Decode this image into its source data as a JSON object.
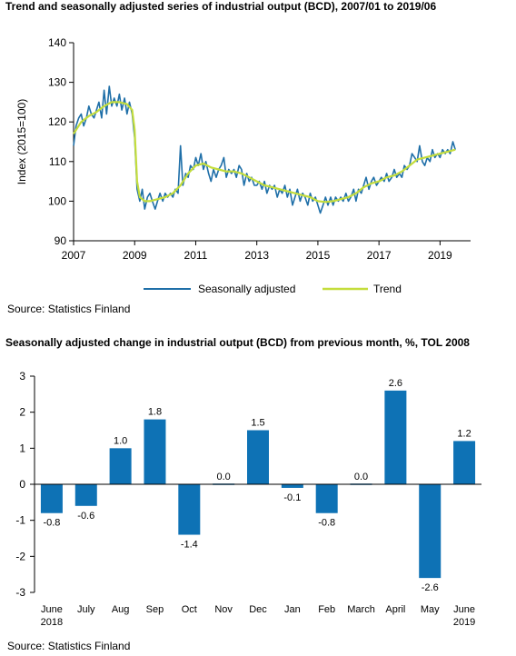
{
  "source_label": "Source: Statistics Finland",
  "chart_data": [
    {
      "type": "line",
      "title": "Trend and seasonally adjusted series of industrial output (BCD), 2007/01 to 2019/06",
      "xlabel": "",
      "ylabel": "Index (2015=100)",
      "ylim": [
        90,
        140
      ],
      "yticks": [
        90,
        100,
        110,
        120,
        130,
        140
      ],
      "xlim": [
        2007,
        2020
      ],
      "xticks": [
        2007,
        2009,
        2011,
        2013,
        2015,
        2017,
        2019
      ],
      "grid": false,
      "legend_position": "bottom",
      "colors": {
        "seasonally_adjusted": "#1f6fa8",
        "trend": "#c4dd3c"
      },
      "series": [
        {
          "name": "Seasonally adjusted",
          "points": [
            [
              2007.0,
              114
            ],
            [
              2007.08,
              119
            ],
            [
              2007.17,
              121
            ],
            [
              2007.25,
              122
            ],
            [
              2007.33,
              119
            ],
            [
              2007.42,
              121
            ],
            [
              2007.5,
              124
            ],
            [
              2007.58,
              122
            ],
            [
              2007.67,
              121
            ],
            [
              2007.75,
              123
            ],
            [
              2007.83,
              125
            ],
            [
              2007.92,
              121
            ],
            [
              2008.0,
              128
            ],
            [
              2008.08,
              122
            ],
            [
              2008.17,
              129
            ],
            [
              2008.25,
              124
            ],
            [
              2008.33,
              126
            ],
            [
              2008.42,
              124
            ],
            [
              2008.5,
              127
            ],
            [
              2008.58,
              123
            ],
            [
              2008.67,
              126
            ],
            [
              2008.75,
              122
            ],
            [
              2008.83,
              125
            ],
            [
              2008.92,
              122
            ],
            [
              2009.0,
              116
            ],
            [
              2009.08,
              103
            ],
            [
              2009.17,
              100
            ],
            [
              2009.25,
              103
            ],
            [
              2009.33,
              98
            ],
            [
              2009.42,
              101
            ],
            [
              2009.5,
              102
            ],
            [
              2009.58,
              100
            ],
            [
              2009.67,
              98
            ],
            [
              2009.75,
              100
            ],
            [
              2009.83,
              102
            ],
            [
              2009.92,
              100
            ],
            [
              2010.0,
              102
            ],
            [
              2010.08,
              101
            ],
            [
              2010.17,
              102
            ],
            [
              2010.25,
              101
            ],
            [
              2010.33,
              103
            ],
            [
              2010.42,
              102
            ],
            [
              2010.5,
              114
            ],
            [
              2010.58,
              104
            ],
            [
              2010.67,
              107
            ],
            [
              2010.75,
              106
            ],
            [
              2010.83,
              109
            ],
            [
              2010.92,
              108
            ],
            [
              2011.0,
              111
            ],
            [
              2011.08,
              109
            ],
            [
              2011.17,
              112
            ],
            [
              2011.25,
              108
            ],
            [
              2011.33,
              110
            ],
            [
              2011.42,
              107
            ],
            [
              2011.5,
              105
            ],
            [
              2011.58,
              108
            ],
            [
              2011.67,
              106
            ],
            [
              2011.75,
              108
            ],
            [
              2011.83,
              109
            ],
            [
              2011.92,
              111
            ],
            [
              2012.0,
              106
            ],
            [
              2012.08,
              108
            ],
            [
              2012.17,
              107
            ],
            [
              2012.25,
              108
            ],
            [
              2012.33,
              106
            ],
            [
              2012.42,
              109
            ],
            [
              2012.5,
              108
            ],
            [
              2012.58,
              104
            ],
            [
              2012.67,
              107
            ],
            [
              2012.75,
              105
            ],
            [
              2012.83,
              106
            ],
            [
              2012.92,
              104
            ],
            [
              2013.0,
              104
            ],
            [
              2013.08,
              105
            ],
            [
              2013.17,
              103
            ],
            [
              2013.25,
              105
            ],
            [
              2013.33,
              102
            ],
            [
              2013.42,
              104
            ],
            [
              2013.5,
              103
            ],
            [
              2013.58,
              104
            ],
            [
              2013.67,
              101
            ],
            [
              2013.75,
              103
            ],
            [
              2013.83,
              102
            ],
            [
              2013.92,
              104
            ],
            [
              2014.0,
              101
            ],
            [
              2014.08,
              103
            ],
            [
              2014.17,
              99
            ],
            [
              2014.25,
              101
            ],
            [
              2014.33,
              103
            ],
            [
              2014.42,
              100
            ],
            [
              2014.5,
              102
            ],
            [
              2014.58,
              101
            ],
            [
              2014.67,
              99
            ],
            [
              2014.75,
              102
            ],
            [
              2014.83,
              100
            ],
            [
              2014.92,
              101
            ],
            [
              2015.0,
              99
            ],
            [
              2015.08,
              97
            ],
            [
              2015.17,
              99
            ],
            [
              2015.25,
              101
            ],
            [
              2015.33,
              99
            ],
            [
              2015.42,
              101
            ],
            [
              2015.5,
              99
            ],
            [
              2015.58,
              101
            ],
            [
              2015.67,
              100
            ],
            [
              2015.75,
              101
            ],
            [
              2015.83,
              100
            ],
            [
              2015.92,
              102
            ],
            [
              2016.0,
              100
            ],
            [
              2016.08,
              101
            ],
            [
              2016.17,
              103
            ],
            [
              2016.25,
              100
            ],
            [
              2016.33,
              103
            ],
            [
              2016.42,
              102
            ],
            [
              2016.5,
              104
            ],
            [
              2016.58,
              106
            ],
            [
              2016.67,
              103
            ],
            [
              2016.75,
              105
            ],
            [
              2016.83,
              106
            ],
            [
              2016.92,
              104
            ],
            [
              2017.0,
              105
            ],
            [
              2017.08,
              106
            ],
            [
              2017.17,
              105
            ],
            [
              2017.25,
              107
            ],
            [
              2017.33,
              105
            ],
            [
              2017.42,
              106
            ],
            [
              2017.5,
              108
            ],
            [
              2017.58,
              106
            ],
            [
              2017.67,
              107
            ],
            [
              2017.75,
              106
            ],
            [
              2017.83,
              109
            ],
            [
              2017.92,
              108
            ],
            [
              2018.0,
              109
            ],
            [
              2018.08,
              112
            ],
            [
              2018.17,
              111
            ],
            [
              2018.25,
              110
            ],
            [
              2018.33,
              114
            ],
            [
              2018.42,
              110
            ],
            [
              2018.5,
              109
            ],
            [
              2018.58,
              111
            ],
            [
              2018.67,
              110
            ],
            [
              2018.75,
              113
            ],
            [
              2018.83,
              111
            ],
            [
              2018.92,
              112
            ],
            [
              2019.0,
              111
            ],
            [
              2019.08,
              113
            ],
            [
              2019.17,
              112
            ],
            [
              2019.25,
              113
            ],
            [
              2019.33,
              112
            ],
            [
              2019.42,
              115
            ],
            [
              2019.5,
              113
            ]
          ]
        },
        {
          "name": "Trend",
          "points": [
            [
              2007.0,
              117
            ],
            [
              2007.25,
              120
            ],
            [
              2007.5,
              121.5
            ],
            [
              2007.75,
              122.5
            ],
            [
              2008.0,
              124
            ],
            [
              2008.25,
              125
            ],
            [
              2008.5,
              125
            ],
            [
              2008.75,
              124.5
            ],
            [
              2008.92,
              123
            ],
            [
              2009.0,
              118
            ],
            [
              2009.08,
              105
            ],
            [
              2009.17,
              101
            ],
            [
              2009.33,
              100
            ],
            [
              2009.5,
              100
            ],
            [
              2009.75,
              100.5
            ],
            [
              2010.0,
              101
            ],
            [
              2010.25,
              102
            ],
            [
              2010.5,
              104
            ],
            [
              2010.75,
              107
            ],
            [
              2011.0,
              109
            ],
            [
              2011.25,
              109.5
            ],
            [
              2011.5,
              108.5
            ],
            [
              2011.75,
              108
            ],
            [
              2012.0,
              107.5
            ],
            [
              2012.25,
              107.5
            ],
            [
              2012.5,
              107
            ],
            [
              2012.75,
              106
            ],
            [
              2013.0,
              105
            ],
            [
              2013.25,
              104
            ],
            [
              2013.5,
              103.5
            ],
            [
              2013.75,
              103
            ],
            [
              2014.0,
              102.5
            ],
            [
              2014.25,
              102
            ],
            [
              2014.5,
              101.5
            ],
            [
              2014.75,
              101
            ],
            [
              2015.0,
              100
            ],
            [
              2015.25,
              99.8
            ],
            [
              2015.5,
              100
            ],
            [
              2015.75,
              100.5
            ],
            [
              2016.0,
              101
            ],
            [
              2016.25,
              102
            ],
            [
              2016.5,
              103.5
            ],
            [
              2016.75,
              104.5
            ],
            [
              2017.0,
              105
            ],
            [
              2017.25,
              106
            ],
            [
              2017.5,
              106.5
            ],
            [
              2017.75,
              107.5
            ],
            [
              2018.0,
              109
            ],
            [
              2018.25,
              110.5
            ],
            [
              2018.5,
              111
            ],
            [
              2018.75,
              111.5
            ],
            [
              2019.0,
              112
            ],
            [
              2019.25,
              112.5
            ],
            [
              2019.5,
              113
            ]
          ]
        }
      ]
    },
    {
      "type": "bar",
      "title": "Seasonally adjusted change in industrial output (BCD) from previous month, %, TOL 2008",
      "xlabel": "",
      "ylabel": "",
      "ylim": [
        -3,
        3
      ],
      "yticks": [
        -3,
        -2,
        -1,
        0,
        1,
        2,
        3
      ],
      "grid": false,
      "color": "#0e72b5",
      "categories": [
        "June",
        "July",
        "Aug",
        "Sep",
        "Oct",
        "Nov",
        "Dec",
        "Jan",
        "Feb",
        "March",
        "April",
        "May",
        "June"
      ],
      "category_years": [
        "2018",
        "",
        "",
        "",
        "",
        "",
        "",
        "",
        "",
        "",
        "",
        "",
        "2019"
      ],
      "values": [
        -0.8,
        -0.6,
        1.0,
        1.8,
        -1.4,
        0.0,
        1.5,
        -0.1,
        -0.8,
        0.0,
        2.6,
        -2.6,
        1.2
      ]
    }
  ]
}
